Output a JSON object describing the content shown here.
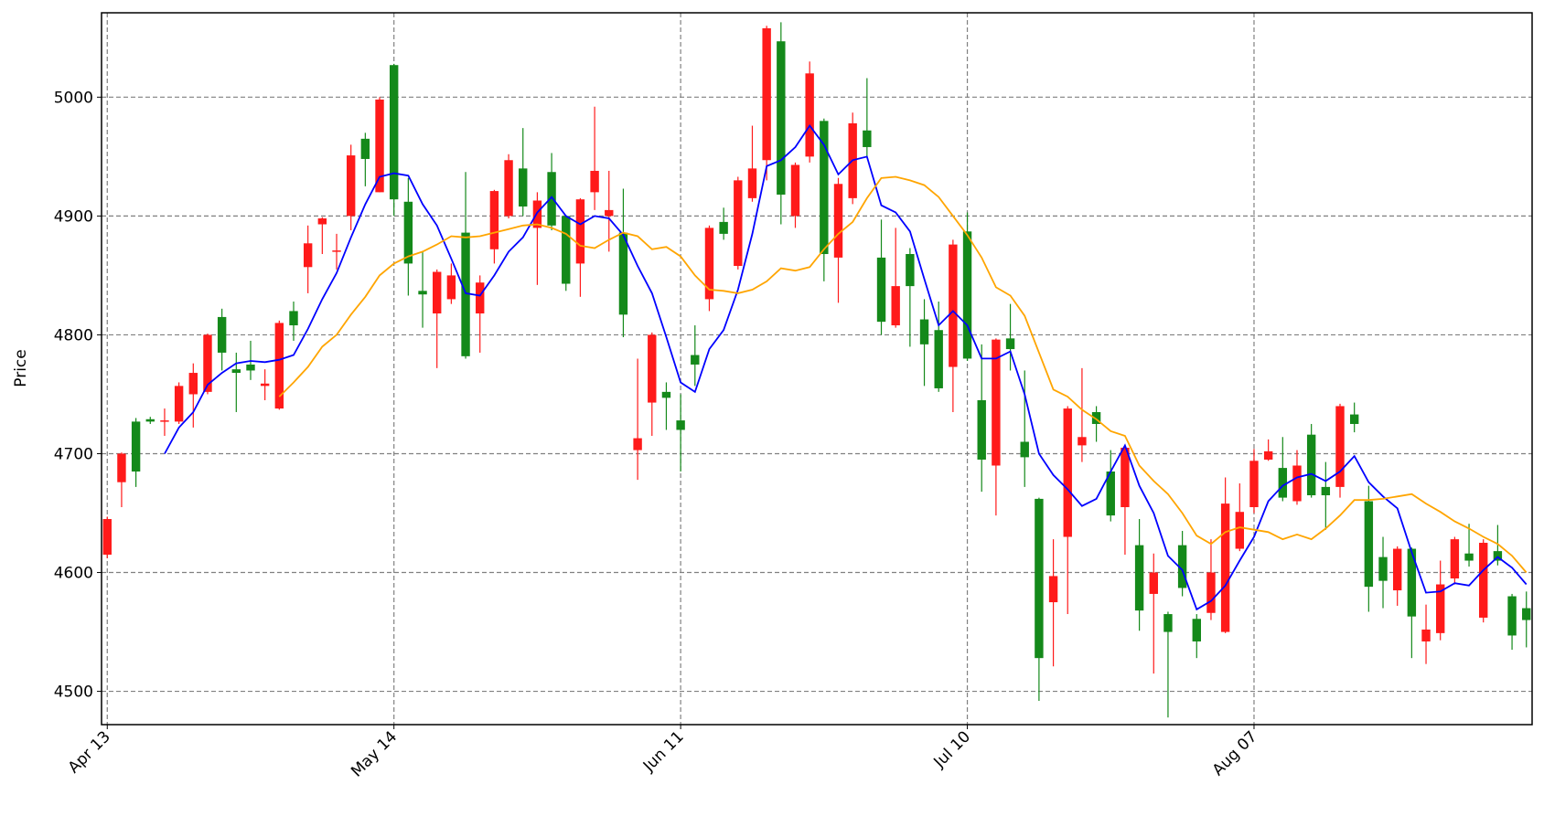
{
  "chart_data": {
    "type": "candlestick",
    "ylabel": "Price",
    "categories": [
      "Apr 13",
      null,
      null,
      null,
      null,
      null,
      null,
      null,
      null,
      null,
      null,
      null,
      null,
      null,
      null,
      null,
      null,
      null,
      null,
      null,
      "May 14",
      null,
      null,
      null,
      null,
      null,
      null,
      null,
      null,
      null,
      null,
      null,
      null,
      null,
      null,
      null,
      null,
      null,
      null,
      null,
      "Jun 11",
      null,
      null,
      null,
      null,
      null,
      null,
      null,
      null,
      null,
      null,
      null,
      null,
      null,
      null,
      null,
      null,
      null,
      null,
      null,
      "Jul 10",
      null,
      null,
      null,
      null,
      null,
      null,
      null,
      null,
      null,
      null,
      null,
      null,
      null,
      null,
      null,
      null,
      null,
      null,
      null,
      "Aug 07",
      null,
      null,
      null,
      null,
      null,
      null,
      null,
      null,
      null,
      null,
      null,
      null,
      null,
      null,
      null,
      null,
      null,
      null,
      null
    ],
    "open": [
      4615,
      4676,
      4727,
      4729,
      4727,
      4727,
      4750,
      4752,
      4815,
      4771,
      4775,
      4757,
      4738,
      4820,
      4857,
      4893,
      4870,
      4900,
      4965,
      4920,
      5027,
      4912,
      4837,
      4818,
      4830,
      4886,
      4818,
      4872,
      4900,
      4940,
      4890,
      4937,
      4900,
      4860,
      4920,
      4900,
      4886,
      4703,
      4743,
      4752,
      4728,
      4783,
      4830,
      4895,
      4858,
      4915,
      4947,
      5047,
      4900,
      4950,
      4980,
      4865,
      4915,
      4972,
      4865,
      4808,
      4868,
      4813,
      4804,
      4773,
      4887,
      4745,
      4690,
      4797,
      4710,
      4662,
      4575,
      4630,
      4707,
      4735,
      4685,
      4655,
      4623,
      4582,
      4565,
      4623,
      4561,
      4566,
      4550,
      4620,
      4655,
      4695,
      4688,
      4660,
      4716,
      4672,
      4672,
      4733,
      4660,
      4613,
      4585,
      4620,
      4542,
      4549,
      4595,
      4616,
      4562,
      4618,
      4580,
      4570
    ],
    "high": [
      4647,
      4701,
      4730,
      4731,
      4738,
      4760,
      4776,
      4801,
      4822,
      4785,
      4795,
      4771,
      4812,
      4828,
      4892,
      4899,
      4885,
      4960,
      4970,
      5000,
      5028,
      4932,
      4870,
      4855,
      4860,
      4937,
      4850,
      4922,
      4952,
      4974,
      4920,
      4953,
      4900,
      4915,
      4992,
      4938,
      4923,
      4780,
      4802,
      4760,
      4750,
      4808,
      4892,
      4907,
      4933,
      4976,
      5060,
      5063,
      4945,
      5030,
      4982,
      4932,
      4987,
      5016,
      4897,
      4890,
      4873,
      4830,
      4828,
      4880,
      4903,
      4792,
      4797,
      4826,
      4770,
      4663,
      4628,
      4740,
      4772,
      4740,
      4703,
      4706,
      4645,
      4616,
      4567,
      4635,
      4565,
      4628,
      4680,
      4675,
      4704,
      4712,
      4714,
      4703,
      4725,
      4693,
      4742,
      4743,
      4673,
      4630,
      4622,
      4621,
      4573,
      4610,
      4630,
      4641,
      4628,
      4640,
      4582,
      4584
    ],
    "low": [
      4612,
      4655,
      4672,
      4725,
      4715,
      4725,
      4722,
      4750,
      4770,
      4735,
      4762,
      4745,
      4737,
      4795,
      4835,
      4868,
      4855,
      4888,
      4925,
      4920,
      4900,
      4833,
      4806,
      4772,
      4826,
      4780,
      4785,
      4860,
      4898,
      4900,
      4842,
      4888,
      4837,
      4832,
      4905,
      4870,
      4798,
      4678,
      4715,
      4720,
      4685,
      4757,
      4820,
      4880,
      4855,
      4912,
      4930,
      4893,
      4890,
      4945,
      4845,
      4827,
      4910,
      4950,
      4800,
      4806,
      4790,
      4757,
      4752,
      4735,
      4778,
      4668,
      4648,
      4770,
      4672,
      4492,
      4521,
      4565,
      4693,
      4710,
      4643,
      4615,
      4551,
      4515,
      4478,
      4580,
      4528,
      4560,
      4549,
      4618,
      4650,
      4694,
      4660,
      4657,
      4663,
      4636,
      4663,
      4718,
      4567,
      4570,
      4572,
      4528,
      4523,
      4543,
      4590,
      4605,
      4558,
      4606,
      4535,
      4537
    ],
    "close": [
      4645,
      4700,
      4685,
      4727,
      4728,
      4757,
      4768,
      4800,
      4785,
      4768,
      4770,
      4759,
      4810,
      4808,
      4877,
      4898,
      4871,
      4951,
      4948,
      4998,
      4914,
      4860,
      4834,
      4853,
      4850,
      4782,
      4844,
      4921,
      4947,
      4908,
      4913,
      4892,
      4843,
      4914,
      4938,
      4905,
      4817,
      4713,
      4800,
      4747,
      4720,
      4775,
      4890,
      4885,
      4930,
      4940,
      5058,
      4918,
      4943,
      5020,
      4868,
      4927,
      4978,
      4958,
      4811,
      4841,
      4841,
      4792,
      4755,
      4876,
      4780,
      4695,
      4796,
      4788,
      4697,
      4528,
      4597,
      4738,
      4714,
      4725,
      4648,
      4705,
      4568,
      4600,
      4550,
      4587,
      4542,
      4600,
      4658,
      4651,
      4694,
      4702,
      4663,
      4690,
      4665,
      4665,
      4740,
      4725,
      4588,
      4593,
      4620,
      4563,
      4552,
      4590,
      4628,
      4610,
      4625,
      4610,
      4547,
      4560
    ],
    "up_color": "#ff1a1a",
    "down_color": "#14891a",
    "ma_series": [
      {
        "color": "#0000ff",
        "values": [
          null,
          null,
          null,
          null,
          4700,
          4722,
          4735,
          4758,
          4768,
          4776,
          4778,
          4777,
          4779,
          4783,
          4805,
          4830,
          4852,
          4882,
          4910,
          4933,
          4936,
          4934,
          4910,
          4892,
          4864,
          4835,
          4833,
          4850,
          4870,
          4882,
          4903,
          4916,
          4900,
          4893,
          4900,
          4898,
          4884,
          4858,
          4835,
          4798,
          4760,
          4752,
          4788,
          4804,
          4838,
          4885,
          4942,
          4947,
          4958,
          4976,
          4960,
          4935,
          4947,
          4950,
          4909,
          4903,
          4887,
          4847,
          4808,
          4820,
          4808,
          4780,
          4780,
          4786,
          4750,
          4700,
          4682,
          4670,
          4656,
          4662,
          4685,
          4707,
          4673,
          4650,
          4614,
          4602,
          4569,
          4576,
          4589,
          4610,
          4630,
          4660,
          4673,
          4680,
          4683,
          4677,
          4685,
          4698,
          4676,
          4664,
          4654,
          4617,
          4583,
          4584,
          4591,
          4589,
          4602,
          4613,
          4604,
          4590
        ]
      },
      {
        "color": "#ffa500",
        "values": [
          null,
          null,
          null,
          null,
          null,
          null,
          null,
          null,
          null,
          null,
          null,
          null,
          4748,
          4760,
          4773,
          4790,
          4800,
          4817,
          4832,
          4850,
          4860,
          4866,
          4870,
          4876,
          4883,
          4882,
          4883,
          4886,
          4889,
          4892,
          4893,
          4890,
          4885,
          4875,
          4873,
          4880,
          4886,
          4883,
          4872,
          4874,
          4866,
          4850,
          4838,
          4837,
          4835,
          4838,
          4845,
          4856,
          4854,
          4857,
          4872,
          4885,
          4895,
          4915,
          4932,
          4933,
          4930,
          4926,
          4916,
          4900,
          4884,
          4865,
          4840,
          4833,
          4816,
          4785,
          4754,
          4748,
          4737,
          4729,
          4719,
          4715,
          4690,
          4677,
          4666,
          4650,
          4631,
          4624,
          4634,
          4638,
          4636,
          4634,
          4628,
          4632,
          4628,
          4637,
          4648,
          4661,
          4661,
          4662,
          4664,
          4666,
          4658,
          4651,
          4643,
          4637,
          4630,
          4624,
          4614,
          4600
        ]
      }
    ],
    "ylim": [
      4472,
      5071
    ],
    "yticks": [
      4500,
      4600,
      4700,
      4800,
      4900,
      5000
    ],
    "grid": true
  }
}
